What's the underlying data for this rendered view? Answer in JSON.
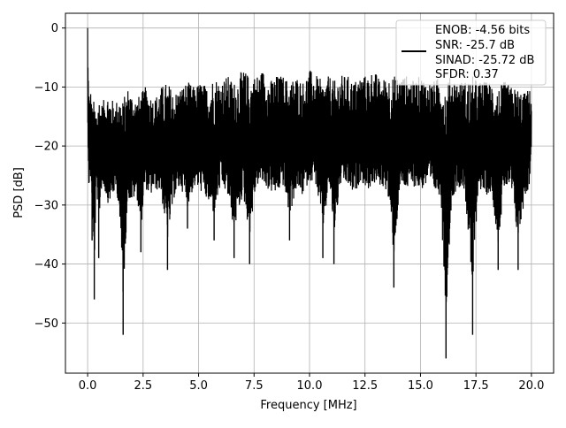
{
  "chart_data": {
    "type": "line",
    "title": "",
    "xlabel": "Frequency [MHz]",
    "ylabel": "PSD [dB]",
    "xlim": [
      -1.0,
      21.0
    ],
    "ylim": [
      -58.5,
      2.5
    ],
    "xticks": [
      0.0,
      2.5,
      5.0,
      7.5,
      10.0,
      12.5,
      15.0,
      17.5,
      20.0
    ],
    "xtick_labels": [
      "0.0",
      "2.5",
      "5.0",
      "7.5",
      "10.0",
      "12.5",
      "15.0",
      "17.5",
      "20.0"
    ],
    "yticks": [
      0,
      -10,
      -20,
      -30,
      -40,
      -50
    ],
    "ytick_labels": [
      "0",
      "−10",
      "−20",
      "−30",
      "−40",
      "−50"
    ],
    "grid": true,
    "legend_position": "top-right",
    "line_color": "#000000",
    "legend_lines": [
      "ENOB: -4.56 bits",
      "SNR: -25.7 dB",
      "SINAD: -25.72 dB",
      "SFDR: 0.37"
    ],
    "series": [
      {
        "description_note": "",
        "x": [
          0.0,
          0.02,
          0.05,
          0.1,
          0.15,
          0.2,
          0.3,
          0.4,
          0.5,
          0.6,
          0.75,
          0.9,
          1.1,
          1.25,
          1.4,
          1.6,
          1.8,
          2.0,
          2.2,
          2.4,
          2.6,
          2.8,
          3.0,
          3.3,
          3.6,
          3.9,
          4.2,
          4.5,
          4.8,
          5.1,
          5.4,
          5.7,
          6.0,
          6.3,
          6.6,
          7.0,
          7.3,
          7.6,
          7.9,
          8.2,
          8.5,
          8.8,
          9.1,
          9.4,
          9.7,
          10.0,
          10.3,
          10.6,
          10.9,
          11.1,
          11.4,
          11.7,
          12.0,
          12.3,
          12.6,
          12.9,
          13.2,
          13.5,
          13.8,
          14.1,
          14.4,
          14.7,
          15.0,
          15.3,
          15.6,
          15.9,
          16.15,
          16.4,
          16.7,
          17.0,
          17.35,
          17.6,
          17.9,
          18.2,
          18.5,
          18.8,
          19.1,
          19.4,
          19.7,
          19.9,
          20.0
        ],
        "upper": [
          0,
          -6,
          -9,
          -12,
          -10,
          -13,
          -12,
          -14,
          -11,
          -13,
          -12,
          -11,
          -12,
          -13,
          -11,
          -12,
          -10,
          -11,
          -12,
          -11,
          -10,
          -11,
          -12,
          -10,
          -9,
          -11,
          -10,
          -9,
          -10,
          -9,
          -10,
          -8,
          -9,
          -8,
          -9,
          -7,
          -8,
          -8,
          -7,
          -9,
          -8,
          -8,
          -9,
          -8,
          -9,
          -7,
          -8,
          -9,
          -8,
          -9,
          -8,
          -8,
          -9,
          -8,
          -8,
          -7,
          -9,
          -8,
          -8,
          -8,
          -8,
          -9,
          -8,
          -9,
          -9,
          -8,
          -9,
          -8,
          -9,
          -9,
          -8,
          -9,
          -9,
          -9,
          -10,
          -9,
          -10,
          -10,
          -11,
          -10,
          -12
        ],
        "lower": [
          -23,
          -22,
          -30,
          -30,
          -28,
          -36,
          -46,
          -28,
          -39,
          -30,
          -30,
          -33,
          -32,
          -30,
          -33,
          -52,
          -32,
          -33,
          -31,
          -38,
          -30,
          -32,
          -30,
          -31,
          -41,
          -32,
          -30,
          -34,
          -30,
          -31,
          -33,
          -36,
          -30,
          -32,
          -39,
          -32,
          -40,
          -30,
          -30,
          -31,
          -32,
          -30,
          -36,
          -31,
          -32,
          -29,
          -30,
          -39,
          -30,
          -40,
          -30,
          -30,
          -32,
          -29,
          -31,
          -30,
          -30,
          -31,
          -44,
          -30,
          -31,
          -30,
          -31,
          -30,
          -31,
          -32,
          -56,
          -33,
          -30,
          -31,
          -52,
          -30,
          -32,
          -31,
          -41,
          -30,
          -31,
          -41,
          -32,
          -30,
          -22
        ]
      }
    ]
  }
}
